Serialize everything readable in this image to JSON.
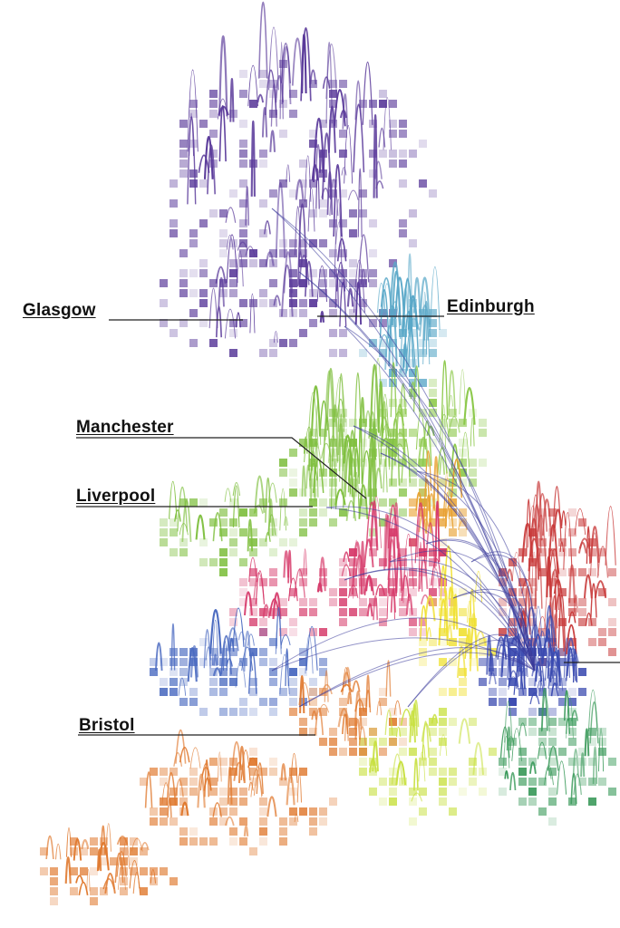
{
  "map": {
    "cities": [
      {
        "id": "glasgow",
        "label": "Glasgow"
      },
      {
        "id": "edinburgh",
        "label": "Edinburgh"
      },
      {
        "id": "manchester",
        "label": "Manchester"
      },
      {
        "id": "liverpool",
        "label": "Liverpool"
      },
      {
        "id": "bristol",
        "label": "Bristol"
      }
    ],
    "region_colors": {
      "scotland-west": "#5a3a9a",
      "scotland-east": "#5aa8c8",
      "north-west": "#7fbf3f",
      "north-east": "#8cc84a",
      "yorkshire": "#e8a030",
      "midlands": "#d63a6a",
      "east-midlands": "#f0e030",
      "wales": "#4a6ac0",
      "south-west": "#e07a30",
      "london": "#3a4ab0",
      "east": "#c83a3a",
      "south-east": "#3a9a5a",
      "south": "#c8e040"
    },
    "link_color": "#3a3a9a"
  }
}
